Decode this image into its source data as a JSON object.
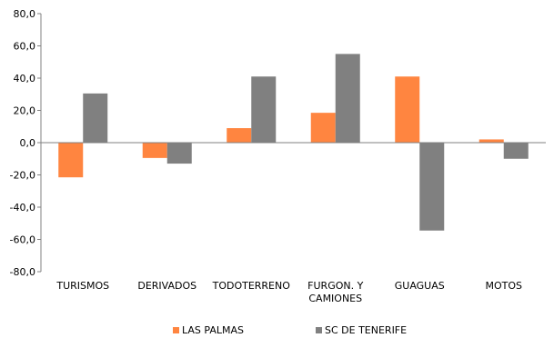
{
  "chart_data": {
    "type": "bar",
    "categories": [
      "TURISMOS",
      "DERIVADOS",
      "TODOTERRENO",
      "FURGON. Y\nCAMIONES",
      "GUAGUAS",
      "MOTOS"
    ],
    "series": [
      {
        "name": "LAS PALMAS",
        "color": "#FF8540",
        "values": [
          -21.5,
          -9.5,
          9.0,
          18.5,
          41.0,
          2.0
        ]
      },
      {
        "name": "SC DE TENERIFE",
        "color": "#808080",
        "values": [
          30.5,
          -13.0,
          41.0,
          55.0,
          -54.5,
          -10.0
        ]
      }
    ],
    "ylim": [
      -80,
      80
    ],
    "yticks": [
      "80,0",
      "60,0",
      "40,0",
      "20,0",
      "0,0",
      "-20,0",
      "-40,0",
      "-60,0",
      "-80,0"
    ],
    "grid": false,
    "legend": "bottom",
    "title": "",
    "xlabel": "",
    "ylabel": ""
  }
}
